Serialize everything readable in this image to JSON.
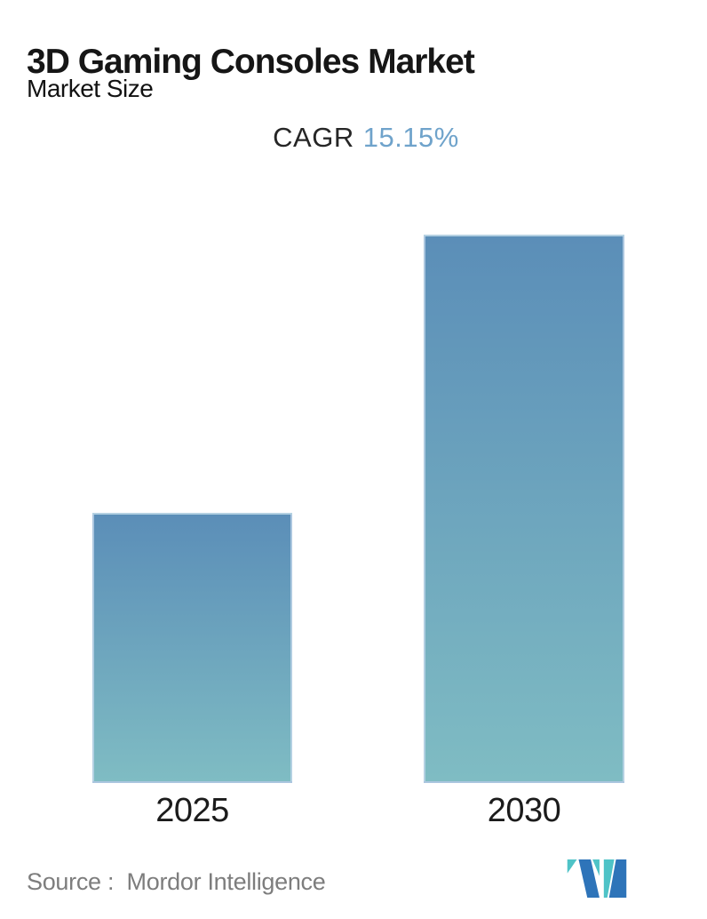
{
  "header": {
    "title": "3D Gaming Consoles Market",
    "subtitle": "Market Size"
  },
  "cagr": {
    "label": "CAGR",
    "value": "15.15%"
  },
  "chart_data": {
    "type": "bar",
    "title": "3D Gaming Consoles Market",
    "subtitle": "Market Size",
    "categories": [
      "2025",
      "2030"
    ],
    "series": [
      {
        "name": "Market Size",
        "values_relative": [
          1.0,
          2.03
        ]
      }
    ],
    "annotations": [
      "CAGR 15.15%"
    ],
    "value_labels_shown": false,
    "y_axis_shown": false,
    "gridlines": false,
    "legend": "none",
    "bar_gradient": {
      "top": "#5b8eb8",
      "bottom": "#7fbcc3"
    }
  },
  "footer": {
    "source_label": "Source :  Mordor Intelligence"
  },
  "colors": {
    "cagr_value_blue": "#6fa3cb",
    "title_text": "#161616",
    "tick_text": "#1b1b1b",
    "source_gray": "#7d7d7d",
    "logo_blue": "#2e74b9",
    "logo_teal": "#4fc3c7"
  },
  "logo": {
    "name": "mordor-intelligence-logo"
  }
}
